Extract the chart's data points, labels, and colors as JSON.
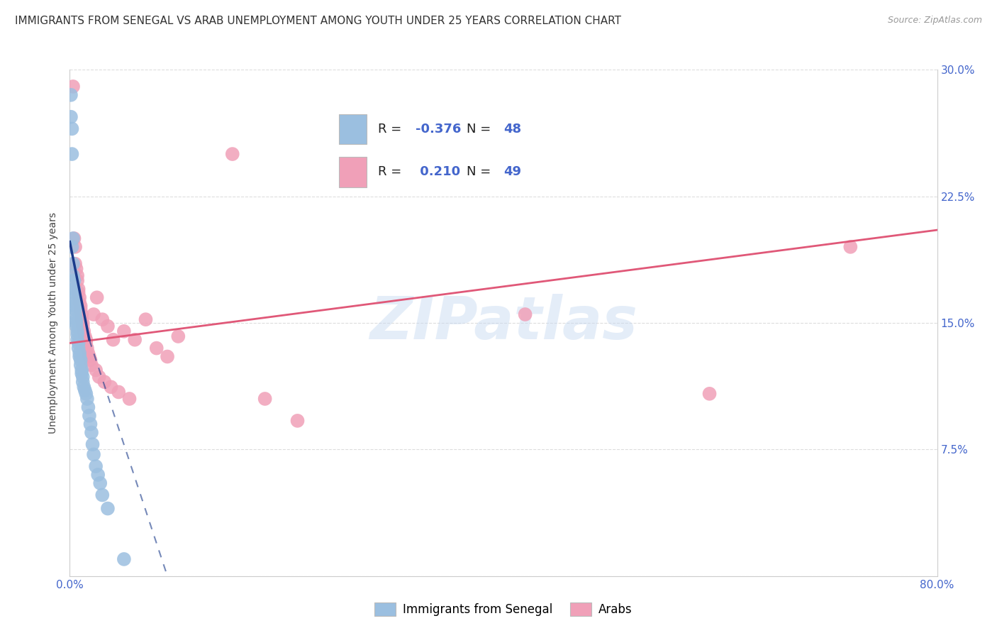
{
  "title": "IMMIGRANTS FROM SENEGAL VS ARAB UNEMPLOYMENT AMONG YOUTH UNDER 25 YEARS CORRELATION CHART",
  "source": "Source: ZipAtlas.com",
  "ylabel": "Unemployment Among Youth under 25 years",
  "xlim": [
    0,
    0.8
  ],
  "ylim": [
    0,
    0.3
  ],
  "xtick_positions": [
    0.0,
    0.1,
    0.2,
    0.3,
    0.4,
    0.5,
    0.6,
    0.7,
    0.8
  ],
  "xticklabels": [
    "0.0%",
    "",
    "",
    "",
    "",
    "",
    "",
    "",
    "80.0%"
  ],
  "ytick_positions": [
    0.0,
    0.075,
    0.15,
    0.225,
    0.3
  ],
  "yticklabels": [
    "",
    "7.5%",
    "15.0%",
    "22.5%",
    "30.0%"
  ],
  "background_color": "#ffffff",
  "grid_color": "#dddddd",
  "watermark_text": "ZIPatlas",
  "senegal_color": "#9bbfe0",
  "arab_color": "#f0a0b8",
  "senegal_line_color": "#1a3a8a",
  "arab_line_color": "#e05878",
  "title_fontsize": 11,
  "axis_label_fontsize": 10,
  "tick_fontsize": 11,
  "legend_fontsize": 13,
  "senegal_x": [
    0.001,
    0.001,
    0.002,
    0.002,
    0.002,
    0.003,
    0.003,
    0.003,
    0.004,
    0.004,
    0.004,
    0.004,
    0.005,
    0.005,
    0.005,
    0.005,
    0.006,
    0.006,
    0.006,
    0.007,
    0.007,
    0.007,
    0.008,
    0.008,
    0.009,
    0.009,
    0.01,
    0.01,
    0.011,
    0.011,
    0.012,
    0.012,
    0.013,
    0.014,
    0.015,
    0.016,
    0.017,
    0.018,
    0.019,
    0.02,
    0.021,
    0.022,
    0.024,
    0.026,
    0.028,
    0.03,
    0.035,
    0.05
  ],
  "senegal_y": [
    0.285,
    0.272,
    0.265,
    0.25,
    0.195,
    0.2,
    0.185,
    0.178,
    0.175,
    0.17,
    0.168,
    0.165,
    0.162,
    0.16,
    0.158,
    0.155,
    0.152,
    0.15,
    0.148,
    0.145,
    0.143,
    0.14,
    0.138,
    0.135,
    0.132,
    0.13,
    0.128,
    0.125,
    0.122,
    0.12,
    0.118,
    0.115,
    0.112,
    0.11,
    0.108,
    0.105,
    0.1,
    0.095,
    0.09,
    0.085,
    0.078,
    0.072,
    0.065,
    0.06,
    0.055,
    0.048,
    0.04,
    0.01
  ],
  "arab_x": [
    0.003,
    0.004,
    0.005,
    0.005,
    0.006,
    0.007,
    0.007,
    0.008,
    0.008,
    0.009,
    0.009,
    0.01,
    0.01,
    0.011,
    0.011,
    0.012,
    0.012,
    0.013,
    0.014,
    0.015,
    0.015,
    0.016,
    0.017,
    0.018,
    0.019,
    0.02,
    0.022,
    0.024,
    0.025,
    0.027,
    0.03,
    0.032,
    0.035,
    0.038,
    0.04,
    0.045,
    0.05,
    0.055,
    0.06,
    0.07,
    0.08,
    0.09,
    0.1,
    0.15,
    0.18,
    0.21,
    0.42,
    0.59,
    0.72
  ],
  "arab_y": [
    0.29,
    0.2,
    0.195,
    0.185,
    0.182,
    0.178,
    0.175,
    0.17,
    0.168,
    0.165,
    0.162,
    0.16,
    0.158,
    0.155,
    0.152,
    0.15,
    0.148,
    0.145,
    0.142,
    0.14,
    0.138,
    0.135,
    0.132,
    0.13,
    0.128,
    0.125,
    0.155,
    0.122,
    0.165,
    0.118,
    0.152,
    0.115,
    0.148,
    0.112,
    0.14,
    0.109,
    0.145,
    0.105,
    0.14,
    0.152,
    0.135,
    0.13,
    0.142,
    0.25,
    0.105,
    0.092,
    0.155,
    0.108,
    0.195
  ],
  "arab_line_x0": 0.0,
  "arab_line_y0": 0.138,
  "arab_line_x1": 0.8,
  "arab_line_y1": 0.205,
  "sen_line_solid_x0": 0.0,
  "sen_line_solid_y0": 0.198,
  "sen_line_solid_x1": 0.018,
  "sen_line_solid_y1": 0.14,
  "sen_line_dashed_x0": 0.018,
  "sen_line_dashed_y0": 0.14,
  "sen_line_dashed_x1": 0.09,
  "sen_line_dashed_y1": 0.0
}
